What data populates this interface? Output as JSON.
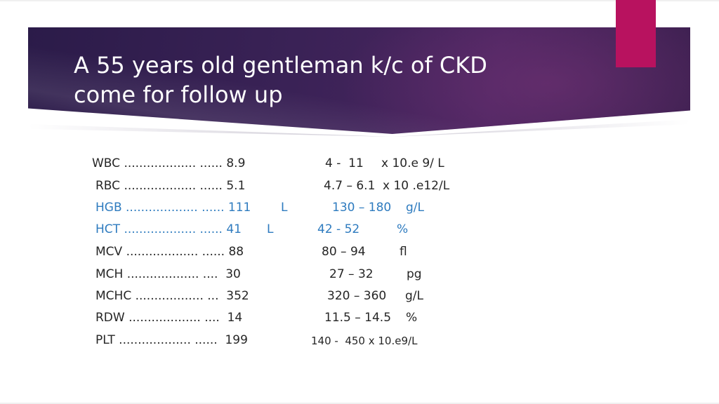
{
  "slide": {
    "title_line1": "A 55 years old gentleman k/c of CKD",
    "title_line2": "come for follow up",
    "accent_color": "#b8125f",
    "highlight_color": "#2e7bbf"
  },
  "labs": [
    {
      "label": "WBC ................... ...... 8.9",
      "flag": "",
      "range": "4 -  11",
      "unit": "x 10.e 9/ L",
      "highlighted": false
    },
    {
      "label": "RBC ................... ...... 5.1",
      "flag": "",
      "range": "4.7 – 6.1",
      "unit": "x 10 .e12/L",
      "highlighted": false
    },
    {
      "label": "HGB ................... ...... 111",
      "flag": "L",
      "range": "130 – 180",
      "unit": "g/L",
      "highlighted": true
    },
    {
      "label": "HCT ................... ...... 41",
      "flag": "L",
      "range": "42 - 52",
      "unit": "%",
      "highlighted": true
    },
    {
      "label": "MCV ................... ...... 88",
      "flag": "",
      "range": "80 – 94",
      "unit": "fl",
      "highlighted": false
    },
    {
      "label": "MCH ................... ....  30",
      "flag": "",
      "range": "27 – 32",
      "unit": "pg",
      "highlighted": false
    },
    {
      "label": "MCHC .................. ...  352",
      "flag": "",
      "range": "320 – 360",
      "unit": "g/L",
      "highlighted": false
    },
    {
      "label": "RDW ................... ....  14",
      "flag": "",
      "range": "11.5 – 14.5",
      "unit": "%",
      "highlighted": false
    },
    {
      "label": "PLT ................... ......  199",
      "flag": "",
      "range": "140 -  450 x 10.e9/L",
      "unit": "",
      "highlighted": false
    }
  ]
}
